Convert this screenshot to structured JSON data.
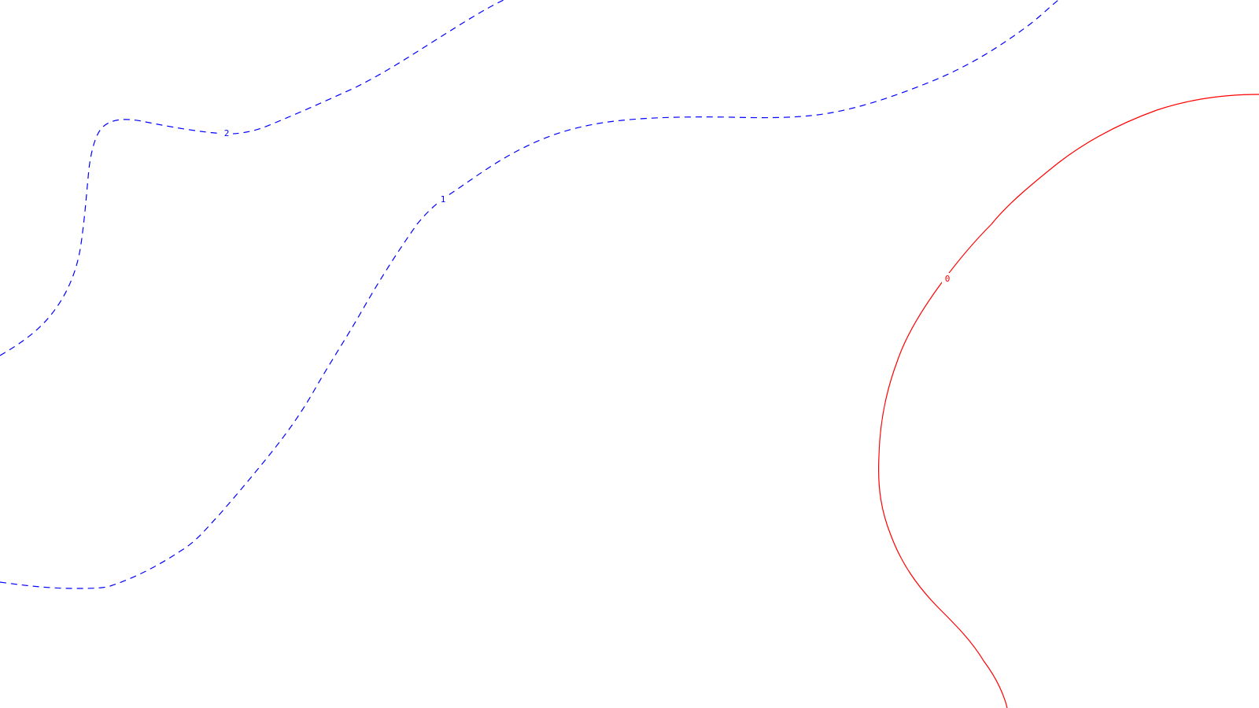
{
  "contours": [
    {
      "id": "contour-2",
      "label": "2",
      "style": "dashed",
      "color": "#0000ff"
    },
    {
      "id": "contour-1",
      "label": "1",
      "style": "dashed",
      "color": "#0000ff"
    },
    {
      "id": "contour-0",
      "label": "0",
      "style": "solid",
      "color": "#ff0000"
    }
  ]
}
